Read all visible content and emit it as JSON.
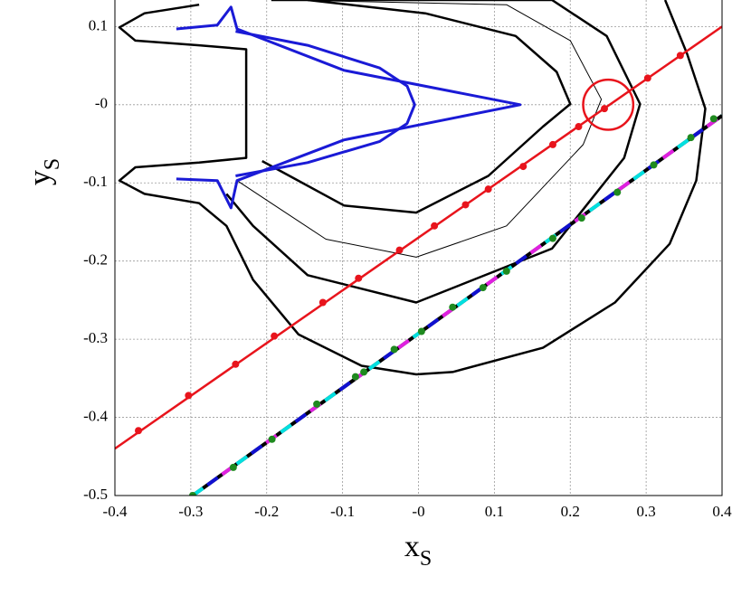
{
  "chart_data": {
    "type": "line",
    "xlabel": {
      "text": "x",
      "sub": "S"
    },
    "ylabel": {
      "text": "y",
      "sub": "S"
    },
    "xlim": [
      -0.4,
      0.4
    ],
    "ylim": [
      -0.5,
      0.134
    ],
    "xticks": [
      -0.4,
      -0.3,
      -0.2,
      -0.1,
      {
        "value": 0,
        "label": "-0"
      },
      0.1,
      0.2,
      0.3,
      0.4
    ],
    "yticks": [
      -0.5,
      -0.4,
      -0.3,
      -0.2,
      -0.1,
      {
        "value": 0,
        "label": "-0"
      },
      0.1
    ],
    "grid": true,
    "series": [
      {
        "color": "#000000",
        "width": 2.5,
        "x": [
          0.325,
          0.354,
          0.378,
          0.366,
          0.331,
          0.259,
          0.164,
          0.045,
          -0.003,
          -0.075,
          -0.158,
          -0.218,
          -0.253,
          -0.289,
          -0.361,
          -0.394,
          -0.373,
          -0.289,
          -0.227,
          -0.227,
          -0.289,
          -0.373,
          -0.394,
          -0.361,
          -0.289
        ],
        "y": [
          0.134,
          0.065,
          -0.005,
          -0.097,
          -0.178,
          -0.253,
          -0.311,
          -0.342,
          -0.345,
          -0.334,
          -0.294,
          -0.224,
          -0.155,
          -0.126,
          -0.114,
          -0.097,
          -0.08,
          -0.074,
          -0.068,
          0.071,
          0.076,
          0.082,
          0.099,
          0.117,
          0.128
        ]
      },
      {
        "color": "#000000",
        "width": 2.5,
        "x": [
          -0.146,
          0.009,
          0.128,
          0.182,
          0.2,
          0.164,
          0.092,
          -0.003,
          -0.098,
          -0.17,
          -0.206
        ],
        "y": [
          0.134,
          0.117,
          0.088,
          0.042,
          0.001,
          -0.028,
          -0.091,
          -0.138,
          -0.129,
          -0.091,
          -0.072
        ]
      },
      {
        "color": "#000000",
        "width": 1,
        "x": [
          -0.17,
          0.116,
          0.2,
          0.241,
          0.217,
          0.116,
          -0.003,
          -0.122,
          -0.194,
          -0.239
        ],
        "y": [
          0.134,
          0.128,
          0.082,
          0.007,
          -0.051,
          -0.155,
          -0.195,
          -0.172,
          -0.126,
          -0.097
        ]
      },
      {
        "color": "#000000",
        "width": 2.5,
        "x": [
          -0.194,
          0.176,
          0.248,
          0.292,
          0.271,
          0.176,
          -0.003,
          -0.146,
          -0.218,
          -0.253
        ],
        "y": [
          0.134,
          0.134,
          0.088,
          0.001,
          -0.068,
          -0.184,
          -0.253,
          -0.218,
          -0.155,
          -0.114
        ]
      },
      {
        "color": "#1a1ad6",
        "width": 3,
        "x": [
          -0.319,
          -0.265,
          -0.247,
          -0.239,
          -0.098,
          0.134,
          -0.098,
          -0.239,
          -0.247,
          -0.265,
          -0.319
        ],
        "y": [
          0.097,
          0.102,
          0.125,
          0.097,
          0.044,
          0,
          -0.045,
          -0.097,
          -0.132,
          -0.097,
          -0.095
        ]
      },
      {
        "color": "#1a1ad6",
        "width": 3,
        "x": [
          -0.241,
          -0.146,
          -0.051,
          -0.015,
          -0.005,
          -0.015,
          -0.051,
          -0.146,
          -0.241
        ],
        "y": [
          0.094,
          0.076,
          0.047,
          0.024,
          0,
          -0.024,
          -0.047,
          -0.074,
          -0.091
        ]
      },
      {
        "color": "#e8141c",
        "width": 2.5,
        "x": [
          -0.4,
          0.4
        ],
        "y": [
          -0.44,
          0.1
        ]
      },
      {
        "color": "#e8141c",
        "marker": true,
        "x": [
          -0.369,
          -0.303,
          -0.241,
          -0.19,
          -0.126,
          -0.079,
          -0.025,
          0.021,
          0.062,
          0.092,
          0.138,
          0.177,
          0.211,
          0.245,
          0.302,
          0.345
        ],
        "y": [
          -0.417,
          -0.372,
          -0.332,
          -0.296,
          -0.253,
          -0.222,
          -0.186,
          -0.155,
          -0.128,
          -0.108,
          -0.079,
          -0.051,
          -0.028,
          -0.005,
          0.034,
          0.063
        ]
      },
      {
        "color": "#000000",
        "width": 4,
        "dashes": [
          "#00e0e0",
          "#1010d0",
          "#e020e0"
        ],
        "x": [
          -0.2975,
          0.4
        ],
        "y": [
          -0.5,
          -0.014
        ]
      },
      {
        "color": "#1f8a1f",
        "marker": true,
        "x": [
          -0.2975,
          -0.244,
          -0.193,
          -0.134,
          -0.083,
          -0.072,
          -0.032,
          0.004,
          0.045,
          0.085,
          0.116,
          0.177,
          0.215,
          0.262,
          0.31,
          0.359,
          0.389
        ],
        "y": [
          -0.5,
          -0.464,
          -0.428,
          -0.383,
          -0.348,
          -0.342,
          -0.313,
          -0.29,
          -0.259,
          -0.234,
          -0.213,
          -0.171,
          -0.145,
          -0.112,
          -0.077,
          -0.042,
          -0.018
        ]
      }
    ],
    "annotation": {
      "cx": 0.25,
      "cy": 0,
      "r": 0.033,
      "color": "#e8141c"
    }
  }
}
